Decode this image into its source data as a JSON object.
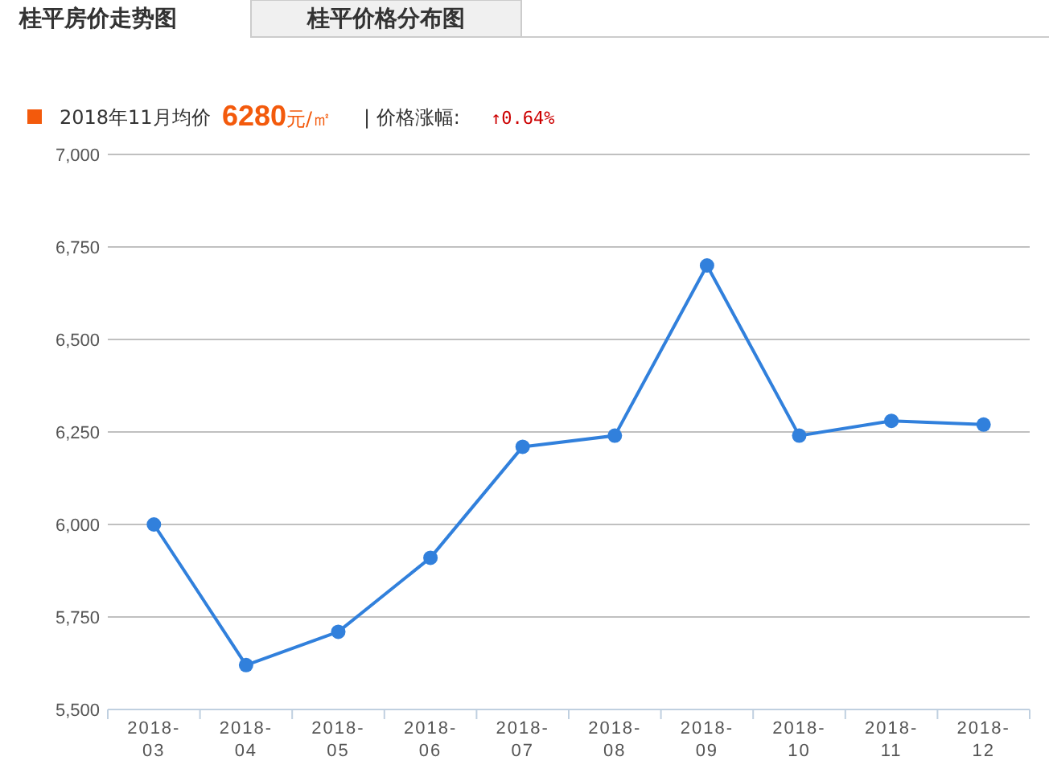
{
  "chart_data": {
    "type": "line",
    "title": "桂平房价走势图",
    "annotations": [
      "桂平价格分布图",
      "2018年11月均价",
      "6280元/㎡",
      "| 价格涨幅:",
      "↑0.64%"
    ],
    "categories": [
      "2018-\n03",
      "2018-\n04",
      "2018-\n05",
      "2018-\n06",
      "2018-\n07",
      "2018-\n08",
      "2018-\n09",
      "2018-\n10",
      "2018-\n11",
      "2018-\n12"
    ],
    "series": [
      {
        "color": "#3180dc",
        "values": [
          6000,
          5620,
          5710,
          5910,
          6210,
          6240,
          6700,
          6240,
          6280,
          6270
        ]
      }
    ],
    "ylim": [
      5500,
      7000
    ],
    "yticks": [
      {
        "value": 5500,
        "label": "5,500"
      },
      {
        "value": 5750,
        "label": "5,750"
      },
      {
        "value": 6000,
        "label": "6,000"
      },
      {
        "value": 6250,
        "label": "6,250"
      },
      {
        "value": 6500,
        "label": "6,500"
      },
      {
        "value": 6750,
        "label": "6,750"
      },
      {
        "value": 7000,
        "label": "7,000"
      }
    ],
    "grid": "y",
    "marker": "circle"
  }
}
